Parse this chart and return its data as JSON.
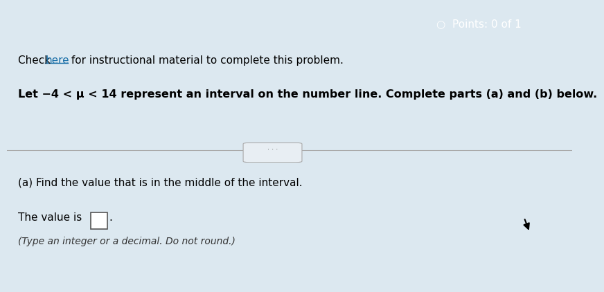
{
  "header_bg_color": "#1a6fa8",
  "header_text": "Points: 0 of 1",
  "header_icon": "○",
  "body_bg_color": "#dce8f0",
  "top_bg_color": "#e8eef3",
  "bot_bg_color": "#e4ecf2",
  "check_text": "Check ",
  "here_text": "here",
  "check_rest": " for instructional material to complete this problem.",
  "let_line": "Let −4 < μ < 14 represent an interval on the number line. Complete parts (a) and (b) below.",
  "divider_dots": "· · ·",
  "part_a_label": "(a) Find the value that is in the middle of the interval.",
  "value_text": "The value is",
  "type_hint": "(Type an integer or a decimal. Do not round.)",
  "link_color": "#1a6fa8",
  "text_color": "#000000",
  "hint_color": "#333333"
}
